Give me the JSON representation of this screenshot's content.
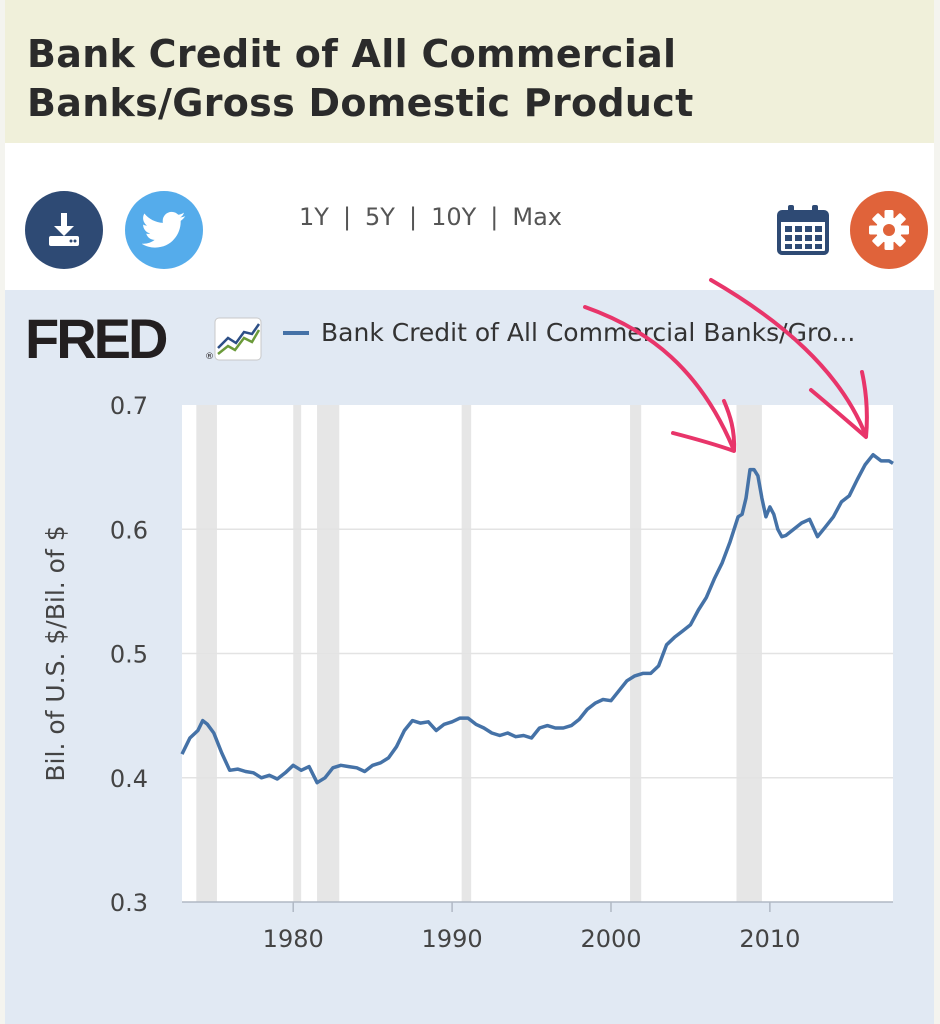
{
  "header": {
    "title_line1": "Bank Credit of All Commercial",
    "title_line2": "Banks/Gross Domestic Product"
  },
  "toolbar": {
    "ranges": [
      "1Y",
      "5Y",
      "10Y",
      "Max"
    ],
    "separator": "|",
    "icons": {
      "download": "download-icon",
      "twitter": "twitter-icon",
      "calendar": "calendar-icon",
      "settings": "gear-icon"
    }
  },
  "colors": {
    "header_bg": "#f0f0da",
    "download_btn": "#2e4a74",
    "twitter_btn": "#55aceb",
    "settings_btn": "#e0633a",
    "calendar": "#2e4a74",
    "chart_bg": "#e1e9f3",
    "line": "#4572a7",
    "recession": "#e6e6e6",
    "annotation_arrows": "#e8356a"
  },
  "fred": {
    "logo_text": "FRED",
    "logo_mark": "®"
  },
  "chart_data": {
    "type": "line",
    "legend": "Bank Credit of All Commercial Banks/Gro...",
    "ylabel": "Bil. of U.S. $/Bil. of $",
    "ylim": [
      0.3,
      0.7
    ],
    "yticks": [
      "0.7",
      "0.6",
      "0.5",
      "0.4",
      "0.3"
    ],
    "xlim": [
      1973.0,
      2017.75
    ],
    "xticks": [
      "1980",
      "1990",
      "2000",
      "2010"
    ],
    "grid": true,
    "recessions": [
      [
        1973.9,
        1975.2
      ],
      [
        1980.0,
        1980.5
      ],
      [
        1981.5,
        1982.9
      ],
      [
        1990.6,
        1991.2
      ],
      [
        2001.2,
        2001.9
      ],
      [
        2007.9,
        2009.5
      ]
    ],
    "series": [
      {
        "x": [
          1973.0,
          1973.5,
          1974.0,
          1974.3,
          1974.6,
          1975.0,
          1975.5,
          1976.0,
          1976.5,
          1977.0,
          1977.5,
          1978.0,
          1978.5,
          1979.0,
          1979.5,
          1980.0,
          1980.5,
          1981.0,
          1981.5,
          1982.0,
          1982.5,
          1983.0,
          1983.5,
          1984.0,
          1984.5,
          1985.0,
          1985.5,
          1986.0,
          1986.5,
          1987.0,
          1987.5,
          1988.0,
          1988.5,
          1989.0,
          1989.5,
          1990.0,
          1990.5,
          1991.0,
          1991.5,
          1992.0,
          1992.5,
          1993.0,
          1993.5,
          1994.0,
          1994.5,
          1995.0,
          1995.5,
          1996.0,
          1996.5,
          1997.0,
          1997.5,
          1998.0,
          1998.5,
          1999.0,
          1999.5,
          2000.0,
          2000.5,
          2001.0,
          2001.5,
          2002.0,
          2002.5,
          2003.0,
          2003.5,
          2004.0,
          2004.5,
          2005.0,
          2005.5,
          2006.0,
          2006.5,
          2007.0,
          2007.5,
          2008.0,
          2008.25,
          2008.5,
          2008.75,
          2009.0,
          2009.25,
          2009.5,
          2009.75,
          2010.0,
          2010.25,
          2010.5,
          2010.75,
          2011.0,
          2011.5,
          2012.0,
          2012.5,
          2013.0,
          2013.5,
          2014.0,
          2014.5,
          2015.0,
          2015.5,
          2016.0,
          2016.5,
          2017.0,
          2017.5,
          2017.75
        ],
        "y": [
          0.419,
          0.432,
          0.438,
          0.446,
          0.443,
          0.436,
          0.42,
          0.406,
          0.407,
          0.405,
          0.404,
          0.4,
          0.402,
          0.399,
          0.404,
          0.41,
          0.406,
          0.409,
          0.396,
          0.4,
          0.408,
          0.41,
          0.409,
          0.408,
          0.405,
          0.41,
          0.412,
          0.416,
          0.425,
          0.438,
          0.446,
          0.444,
          0.445,
          0.438,
          0.443,
          0.445,
          0.448,
          0.448,
          0.443,
          0.44,
          0.436,
          0.434,
          0.436,
          0.433,
          0.434,
          0.432,
          0.44,
          0.442,
          0.44,
          0.44,
          0.442,
          0.447,
          0.455,
          0.46,
          0.463,
          0.462,
          0.47,
          0.478,
          0.482,
          0.484,
          0.484,
          0.49,
          0.507,
          0.513,
          0.518,
          0.523,
          0.535,
          0.545,
          0.56,
          0.573,
          0.59,
          0.61,
          0.612,
          0.625,
          0.648,
          0.648,
          0.643,
          0.625,
          0.61,
          0.618,
          0.612,
          0.6,
          0.594,
          0.595,
          0.6,
          0.605,
          0.608,
          0.594,
          0.602,
          0.61,
          0.622,
          0.627,
          0.64,
          0.652,
          0.66,
          0.655,
          0.655,
          0.653
        ]
      }
    ]
  }
}
